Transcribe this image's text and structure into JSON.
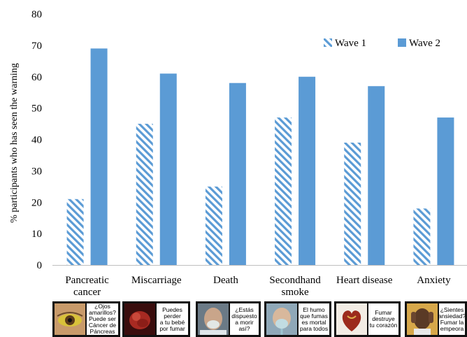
{
  "chart_data": {
    "type": "bar",
    "ylabel": "% participants who has seen the warning",
    "ylim": [
      0,
      80
    ],
    "yticks": [
      0,
      10,
      20,
      30,
      40,
      50,
      60,
      70,
      80
    ],
    "categories": [
      "Pancreatic cancer",
      "Miscarriage",
      "Death",
      "Secondhand smoke",
      "Heart disease",
      "Anxiety"
    ],
    "category_lines": [
      [
        "Pancreatic",
        "cancer"
      ],
      [
        "Miscarriage"
      ],
      [
        "Death"
      ],
      [
        "Secondhand",
        "smoke"
      ],
      [
        "Heart disease"
      ],
      [
        "Anxiety"
      ]
    ],
    "series": [
      {
        "name": "Wave 1",
        "values": [
          21,
          45,
          25,
          47,
          39,
          18
        ],
        "pattern": "hatched",
        "color": "#5b9bd5"
      },
      {
        "name": "Wave 2",
        "values": [
          69,
          61,
          58,
          60,
          57,
          47
        ],
        "pattern": "solid",
        "color": "#5b9bd5"
      }
    ],
    "legend_position": "top-right",
    "grid": false
  },
  "warning_labels": [
    {
      "category": "Pancreatic cancer",
      "text": "¿Ojos\namarillos?\nPuede ser\nCáncer de\nPáncreas",
      "image": "yellow-eye-photo"
    },
    {
      "category": "Miscarriage",
      "text": "Puedes\nperder\na tu bebé\npor fumar",
      "image": "fetus-photo"
    },
    {
      "category": "Death",
      "text": "¿Estás\ndispuesto\na morir\nasí?",
      "image": "patient-with-oxygen-mask-photo"
    },
    {
      "category": "Secondhand smoke",
      "text": "El humo\nque fumas\nes mortal\npara todos",
      "image": "child-with-oxygen-mask-photo"
    },
    {
      "category": "Heart disease",
      "text": "Fumar\ndestruye\ntu corazón",
      "image": "diseased-heart-photo"
    },
    {
      "category": "Anxiety",
      "text": "¿Sientes\nansiedad?\nFumar la\nempeora",
      "image": "anxious-man-photo"
    }
  ]
}
